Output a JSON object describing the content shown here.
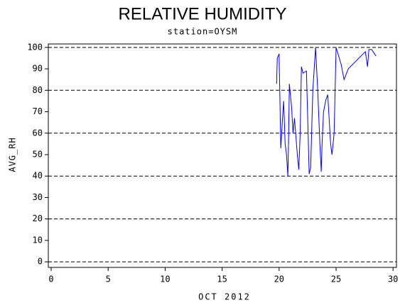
{
  "chart_data": {
    "type": "line",
    "title": "RELATIVE HUMIDITY",
    "subtitle": "station=OYSM",
    "x_label": "OCT 2012",
    "y_label": "AVG_RH",
    "xlim": [
      -0.25,
      30.3
    ],
    "ylim": [
      -2.6,
      101.6
    ],
    "xticks": [
      0,
      5,
      10,
      15,
      20,
      25,
      30
    ],
    "yticks": [
      0,
      10,
      20,
      30,
      40,
      50,
      60,
      70,
      80,
      90,
      100
    ],
    "grid_lines": [
      0,
      20,
      40,
      60,
      80,
      100
    ],
    "series": [
      {
        "name": "AVG_RH",
        "color": "#0000ff",
        "x": [
          19.78,
          19.84,
          20.0,
          20.15,
          20.28,
          20.4,
          20.53,
          20.65,
          20.77,
          20.84,
          20.9,
          21.1,
          21.22,
          21.35,
          21.6,
          21.73,
          21.85,
          21.96,
          22.1,
          22.4,
          22.64,
          22.77,
          22.96,
          23.2,
          23.39,
          23.58,
          23.7,
          23.77,
          23.9,
          24.08,
          24.27,
          24.52,
          24.64,
          24.83,
          25.0,
          25.45,
          25.7,
          26.07,
          27.0,
          27.57,
          27.76,
          27.88,
          28.13,
          28.5
        ],
        "values": [
          83,
          95,
          97,
          53,
          65,
          75,
          55,
          50,
          40,
          60,
          83,
          72,
          60,
          67,
          50,
          43,
          60,
          91,
          88,
          89,
          41,
          44,
          80,
          100,
          80,
          55,
          42,
          55,
          70,
          75,
          78,
          55,
          50,
          60,
          100,
          92,
          85,
          90,
          95,
          98,
          91,
          99,
          99,
          96
        ]
      }
    ]
  }
}
